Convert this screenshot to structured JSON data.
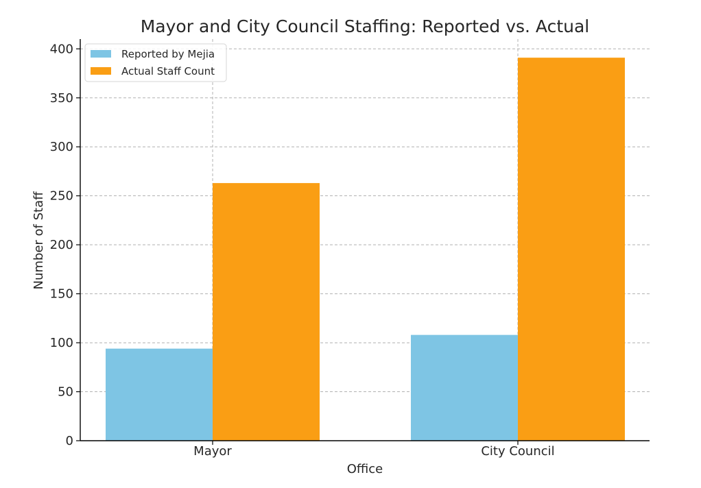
{
  "chart_data": {
    "type": "bar",
    "title": "Mayor and City Council Staffing: Reported vs. Actual",
    "xlabel": "Office",
    "ylabel": "Number of Staff",
    "categories": [
      "Mayor",
      "City Council"
    ],
    "series": [
      {
        "name": "Reported by Mejia",
        "values": [
          94,
          108
        ],
        "color": "#7ec5e4"
      },
      {
        "name": "Actual Staff Count",
        "values": [
          263,
          391
        ],
        "color": "#fa9e14"
      }
    ],
    "ylim": [
      0,
      410
    ],
    "yticks": [
      0,
      50,
      100,
      150,
      200,
      250,
      300,
      350,
      400
    ],
    "grid": true,
    "legend_position": "top-left"
  }
}
